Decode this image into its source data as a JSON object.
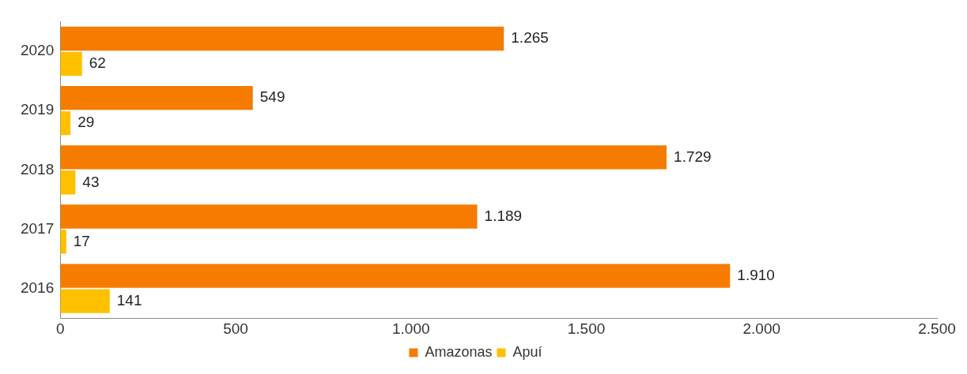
{
  "chart_data": {
    "type": "bar",
    "orientation": "horizontal",
    "categories": [
      "2020",
      "2019",
      "2018",
      "2017",
      "2016"
    ],
    "series": [
      {
        "name": "Amazonas",
        "color": "#f57c00",
        "values": [
          1265,
          549,
          1729,
          1189,
          1910
        ],
        "value_labels": [
          "1.265",
          "549",
          "1.729",
          "1.189",
          "1.910"
        ]
      },
      {
        "name": "Apuí",
        "color": "#ffc000",
        "values": [
          62,
          29,
          43,
          17,
          141
        ],
        "value_labels": [
          "62",
          "29",
          "43",
          "17",
          "141"
        ]
      }
    ],
    "xlim": [
      0,
      2500
    ],
    "xticks": [
      0,
      500,
      {
        "value": 1000,
        "label": "1.000"
      },
      {
        "value": 1500,
        "label": "1.500"
      },
      {
        "value": 2000,
        "label": "2.000"
      },
      {
        "value": 2500,
        "label": "2.500"
      }
    ],
    "grid": false,
    "legend": "bottom"
  }
}
